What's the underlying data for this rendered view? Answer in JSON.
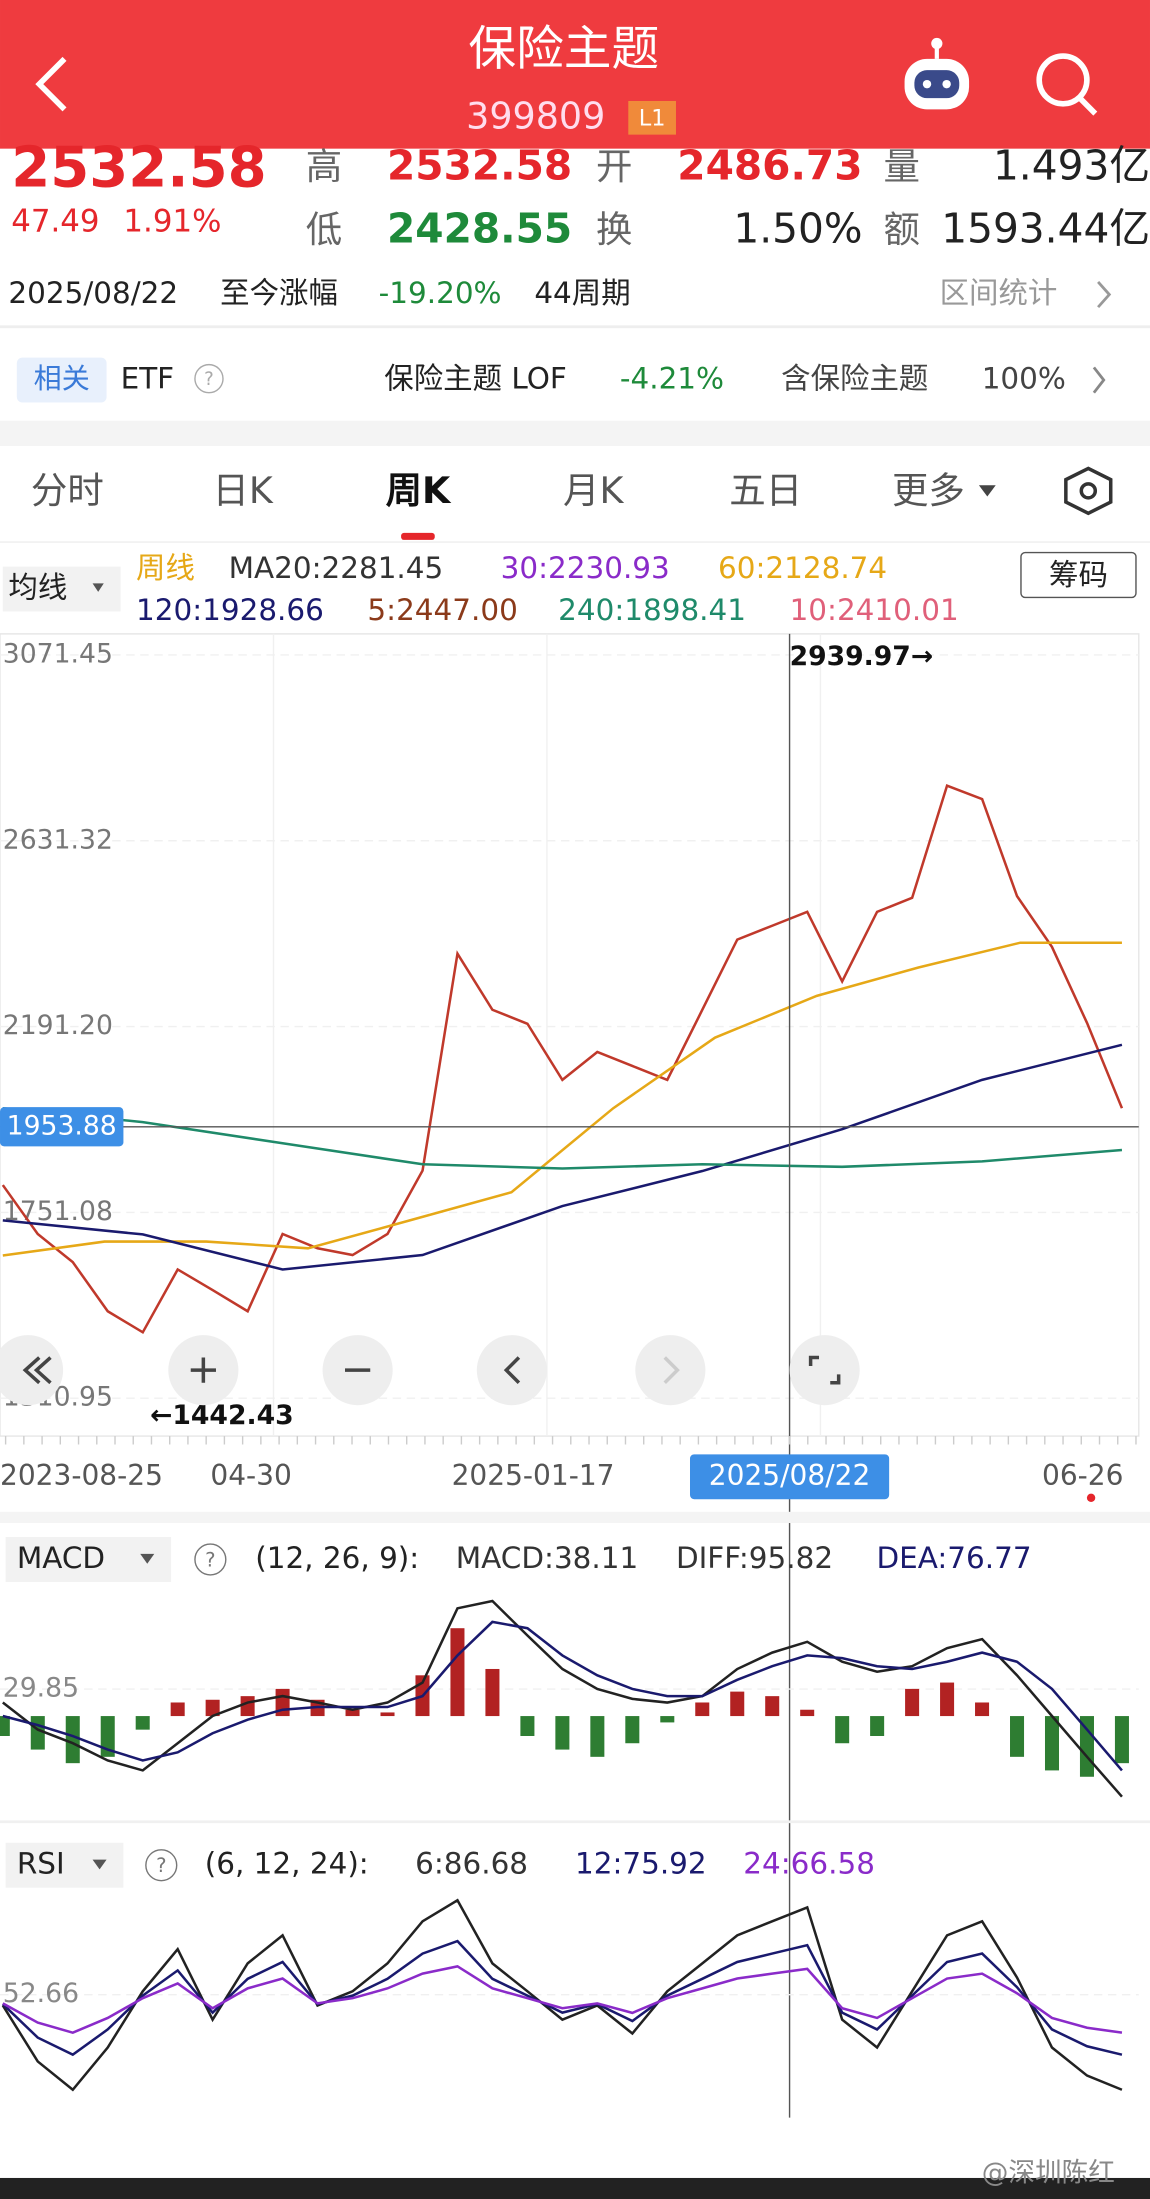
{
  "header": {
    "title": "保险主题",
    "code": "399809",
    "level": "L1"
  },
  "quote": {
    "price": "2532.58",
    "change": "47.49",
    "change_pct": "1.91%",
    "fields": [
      {
        "label": "高",
        "value": "2532.58"
      },
      {
        "label": "开",
        "value": "2486.73"
      },
      {
        "label": "量",
        "value": "1.493亿"
      },
      {
        "label": "低",
        "value": "2428.55"
      },
      {
        "label": "换",
        "value": "1.50%"
      },
      {
        "label": "额",
        "value": "1593.44亿"
      }
    ]
  },
  "range": {
    "date": "2025/08/22",
    "label": "至今涨幅",
    "pct": "-19.20%",
    "period": "44周期",
    "stat": "区间统计"
  },
  "related": {
    "tag": "相关",
    "etf": "ETF",
    "fund": "保险主题 LOF",
    "fund_pct": "-4.21%",
    "holding": "含保险主题",
    "holding_pct": "100%"
  },
  "tabs": [
    "分时",
    "日K",
    "周K",
    "月K",
    "五日",
    "更多"
  ],
  "active_tab": 2,
  "kline": {
    "type": "line",
    "ma_selector": "均线",
    "chip": "筹码",
    "legend": [
      {
        "text": "周线",
        "color": "#e6a817"
      },
      {
        "text": "MA20:2281.45",
        "color": "#333333"
      },
      {
        "text": "30:2230.93",
        "color": "#8a2bc9"
      },
      {
        "text": "60:2128.74",
        "color": "#e6a817"
      },
      {
        "text": "120:1928.66",
        "color": "#1a1a6e"
      },
      {
        "text": "5:2447.00",
        "color": "#8b3a1a"
      },
      {
        "text": "240:1898.41",
        "color": "#1f8a6a"
      },
      {
        "text": "10:2410.01",
        "color": "#e0607a"
      }
    ],
    "ylim": [
      1310.95,
      3071.45
    ],
    "yticks": [
      3071.45,
      2631.32,
      {
        "value": 2191.2,
        "label": "2191.20"
      },
      1751.08,
      1310.95
    ],
    "xticks": [
      "2023-08-25",
      "04-30",
      "2025-01-17",
      "2025/08/22",
      "06-26"
    ],
    "crosshair": {
      "value": 1953.88
    },
    "high_label": "2939.97→",
    "low_label": "←1442.43",
    "series": [
      {
        "color": "#c0392b",
        "values": [
          1816,
          1700,
          1633,
          1517,
          1467,
          1616,
          1567,
          1517,
          1700,
          1666,
          1650,
          1700,
          1850,
          2364,
          2231,
          2198,
          2065,
          2131,
          2098,
          2065,
          2231,
          2397,
          2430,
          2463,
          2298,
          2463,
          2496,
          2762,
          2730,
          2500,
          2380,
          2200,
          1998
        ]
      },
      {
        "color": "#e6a817",
        "values": [
          1649,
          1682,
          1682,
          1666,
          1732,
          1799,
          1998,
          2165,
          2264,
          2331,
          2390,
          2390
        ]
      },
      {
        "color": "#1a1a6e",
        "values": [
          1732,
          1699,
          1616,
          1650,
          1766,
          1849,
          1948,
          2065,
          2148
        ]
      },
      {
        "color": "#1f8a6a",
        "values": [
          1998,
          1965,
          1915,
          1865,
          1855,
          1865,
          1859,
          1872,
          1899
        ]
      }
    ]
  },
  "macd": {
    "selector": "MACD",
    "params": "(12, 26, 9):",
    "readouts": [
      {
        "text": "MACD:38.11",
        "color": "#333333"
      },
      {
        "text": "DIFF:95.82",
        "color": "#333333"
      },
      {
        "text": "DEA:76.77",
        "color": "#1a1a6e"
      }
    ],
    "ylim": [
      -95,
      145
    ],
    "yticks": [
      29.85
    ],
    "up_color": "#b22222",
    "down_color": "#2e7d32",
    "histogram": [
      -22,
      -37,
      -52,
      -45,
      -15,
      15,
      18,
      22,
      30,
      18,
      7,
      4,
      45,
      97,
      52,
      -22,
      -37,
      -45,
      -30,
      -7,
      15,
      27,
      22,
      7,
      -30,
      -22,
      30,
      37,
      15,
      -45,
      -60,
      -67,
      -52
    ],
    "series": [
      {
        "color": "#222222",
        "values": [
          15,
          -15,
          -30,
          -49,
          -60,
          -30,
          0,
          15,
          22,
          15,
          7,
          15,
          37,
          119,
          127,
          89,
          52,
          30,
          19,
          15,
          22,
          52,
          70,
          82,
          60,
          49,
          55,
          75,
          85,
          45,
          0,
          -45,
          -89
        ]
      },
      {
        "color": "#1a1a6e",
        "values": [
          0,
          -10,
          -22,
          -37,
          -49,
          -40,
          -19,
          -4,
          7,
          10,
          10,
          10,
          22,
          67,
          104,
          97,
          67,
          45,
          30,
          22,
          22,
          40,
          55,
          67,
          64,
          55,
          52,
          60,
          70,
          60,
          30,
          -15,
          -60
        ]
      }
    ]
  },
  "rsi": {
    "selector": "RSI",
    "params": "(6, 12, 24):",
    "readouts": [
      {
        "text": "6:86.68",
        "color": "#333333"
      },
      {
        "text": "12:75.92",
        "color": "#1a1a6e"
      },
      {
        "text": "24:66.58",
        "color": "#8a2bc9"
      }
    ],
    "ylim": [
      10,
      90
    ],
    "yticks": [
      52.66
    ],
    "series": [
      {
        "color": "#222222",
        "values": [
          48.7,
          28.1,
          17.7,
          33.2,
          53.9,
          69.4,
          43.5,
          64.2,
          74.5,
          48.7,
          53.9,
          64.2,
          79.7,
          87.4,
          64.2,
          53.9,
          43.5,
          48.7,
          38.4,
          53.9,
          64.2,
          74.5,
          79.7,
          84.8,
          43.5,
          33.2,
          53.9,
          74.5,
          79.7,
          59.0,
          33.2,
          22.9,
          17.7
        ]
      },
      {
        "color": "#1a1a6e",
        "values": [
          49.2,
          36.9,
          30.6,
          39.9,
          52.3,
          61.6,
          46.1,
          58.5,
          64.7,
          49.2,
          52.3,
          58.5,
          67.8,
          72.4,
          58.5,
          52.3,
          46.1,
          49.2,
          43.0,
          52.3,
          58.5,
          64.7,
          67.8,
          70.9,
          46.1,
          39.9,
          52.3,
          64.7,
          67.8,
          55.4,
          39.9,
          33.7,
          30.6
        ]
      },
      {
        "color": "#8a2bc9",
        "values": [
          49.5,
          42.4,
          38.7,
          44.1,
          51.4,
          56.8,
          47.7,
          55.0,
          58.6,
          49.5,
          51.4,
          55.0,
          60.4,
          63.1,
          55.0,
          51.4,
          47.7,
          49.5,
          46.0,
          51.4,
          55.0,
          58.6,
          60.4,
          62.2,
          47.7,
          44.1,
          51.4,
          58.6,
          60.4,
          53.2,
          44.1,
          40.5,
          38.7
        ]
      }
    ]
  },
  "watermark": "@深圳陈红"
}
